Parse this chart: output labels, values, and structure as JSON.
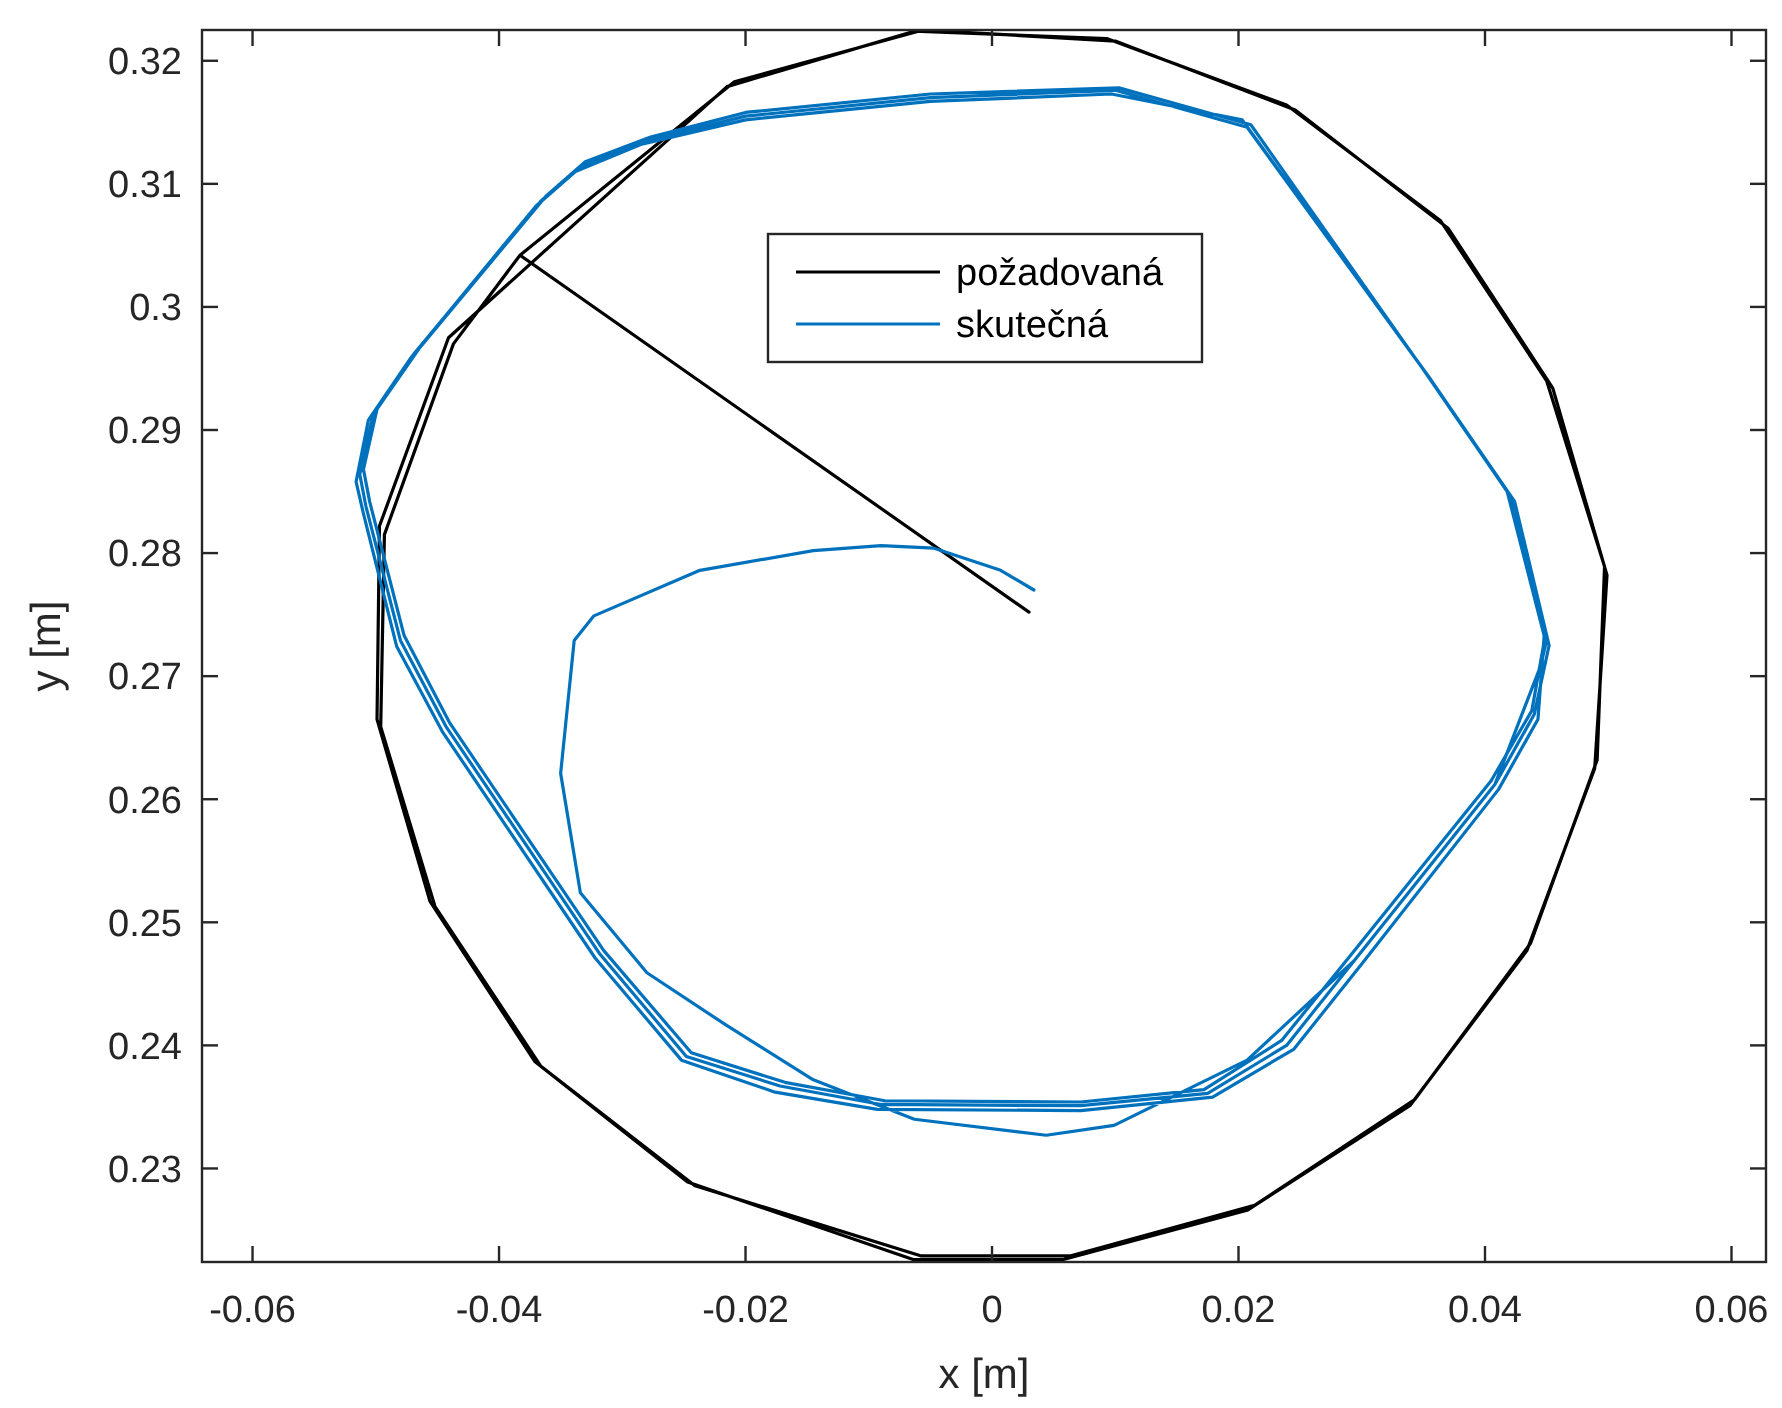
{
  "chart_data": {
    "type": "line",
    "xlabel": "x [m]",
    "ylabel": "y [m]",
    "xlim": [
      -0.0641,
      0.0628
    ],
    "ylim": [
      0.2224,
      0.3225
    ],
    "xticks": [
      -0.06,
      -0.04,
      -0.02,
      0,
      0.02,
      0.04,
      0.06
    ],
    "yticks": [
      0.23,
      0.24,
      0.25,
      0.26,
      0.27,
      0.28,
      0.29,
      0.3,
      0.31,
      0.32
    ],
    "legend": "top",
    "marker": "none",
    "line_style": "solid",
    "series": [
      {
        "name": "požadovaná",
        "color": "#000000",
        "x": [
          0.003,
          -0.0383,
          -0.0437,
          -0.0493,
          -0.0496,
          -0.0452,
          -0.0366,
          -0.0241,
          -0.0058,
          0.0064,
          0.0213,
          0.0343,
          0.0437,
          0.0491,
          0.0497,
          0.045,
          0.0364,
          0.0239,
          0.0093,
          -0.0063,
          -0.0215,
          -0.0441,
          -0.0497,
          -0.0499,
          -0.0456,
          -0.0371,
          -0.0247,
          -0.0064,
          0.0058,
          0.0207,
          0.0339,
          0.0434,
          0.0489,
          0.0499,
          0.0455,
          0.037,
          0.0246,
          0.01,
          -0.0056,
          -0.0209,
          -0.0383
        ],
        "values": [
          0.2752,
          0.3042,
          0.297,
          0.2815,
          0.2659,
          0.2513,
          0.2383,
          0.2286,
          0.2229,
          0.2229,
          0.227,
          0.2356,
          0.2483,
          0.2632,
          0.2789,
          0.294,
          0.307,
          0.3164,
          0.3218,
          0.3224,
          0.3179,
          0.2975,
          0.2822,
          0.2665,
          0.2517,
          0.2387,
          0.2289,
          0.2226,
          0.2226,
          0.2266,
          0.2351,
          0.2477,
          0.2625,
          0.2782,
          0.2934,
          0.3064,
          0.316,
          0.3216,
          0.3225,
          0.3183,
          0.3042
        ]
      },
      {
        "name": "skutečná",
        "color": "#0072bd",
        "x": [
          0.0034,
          0.0007,
          -0.0047,
          -0.009,
          -0.0145,
          -0.0237,
          -0.0323,
          -0.0339,
          -0.035,
          -0.0334,
          -0.028,
          -0.0215,
          -0.0145,
          -0.0063,
          0.0044,
          0.0099,
          0.0207,
          0.0294,
          0.0408,
          0.0445,
          0.045,
          0.0421,
          0.0353,
          0.0207,
          0.01,
          -0.005,
          -0.02,
          -0.028,
          -0.0334,
          -0.0366,
          -0.0469,
          -0.0502,
          -0.0513,
          -0.0508,
          -0.048,
          -0.0443,
          -0.0318,
          -0.0248,
          -0.0172,
          -0.009,
          0.0072,
          0.0175,
          0.0239,
          0.0294,
          0.0408,
          0.044,
          0.0452,
          0.0424,
          0.0356,
          0.0203,
          0.0097,
          -0.005,
          -0.02,
          -0.0285,
          -0.0338,
          -0.037,
          -0.0472,
          -0.0506,
          -0.0516,
          -0.051,
          -0.0483,
          -0.0446,
          -0.0322,
          -0.0252,
          -0.0176,
          -0.0093,
          0.0072,
          0.0179,
          0.0245,
          0.0299,
          0.0411,
          0.0443,
          0.0448,
          0.0418,
          0.035,
          0.021,
          0.0103,
          -0.005,
          -0.02,
          -0.0277,
          -0.033,
          -0.0362,
          -0.0465,
          -0.0499,
          -0.051,
          -0.0505,
          -0.0477,
          -0.044,
          -0.0315,
          -0.0244,
          -0.0168,
          -0.0087,
          0.0072,
          0.0172,
          0.0235,
          0.029,
          0.0405,
          0.0438,
          0.0448
        ],
        "values": [
          0.277,
          0.2786,
          0.2804,
          0.2806,
          0.2802,
          0.2786,
          0.2749,
          0.2729,
          0.2621,
          0.2524,
          0.2459,
          0.2416,
          0.2372,
          0.234,
          0.2327,
          0.2335,
          0.2388,
          0.2469,
          0.2612,
          0.2708,
          0.2729,
          0.2846,
          0.2945,
          0.3146,
          0.3176,
          0.317,
          0.3155,
          0.3135,
          0.3114,
          0.3086,
          0.2962,
          0.2913,
          0.2864,
          0.2838,
          0.2729,
          0.2659,
          0.2474,
          0.2391,
          0.2367,
          0.2352,
          0.2351,
          0.2361,
          0.24,
          0.2469,
          0.2612,
          0.2669,
          0.2725,
          0.2842,
          0.2941,
          0.3152,
          0.3173,
          0.3167,
          0.3152,
          0.3132,
          0.311,
          0.3082,
          0.2958,
          0.2908,
          0.2858,
          0.2832,
          0.2724,
          0.2655,
          0.2471,
          0.2388,
          0.2362,
          0.2348,
          0.2347,
          0.2358,
          0.2397,
          0.2465,
          0.2608,
          0.2665,
          0.2733,
          0.285,
          0.2949,
          0.3148,
          0.3178,
          0.3173,
          0.3158,
          0.3138,
          0.3118,
          0.309,
          0.2966,
          0.2917,
          0.2868,
          0.2842,
          0.2733,
          0.2662,
          0.2477,
          0.2394,
          0.237,
          0.2355,
          0.2354,
          0.2364,
          0.2404,
          0.2472,
          0.2615,
          0.2672,
          0.2728
        ]
      }
    ]
  }
}
